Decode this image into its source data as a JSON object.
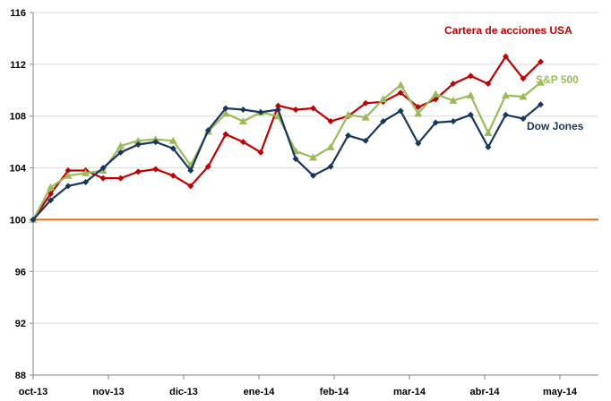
{
  "chart_data": {
    "type": "line",
    "title": "",
    "xlabel": "",
    "ylabel": "",
    "x_tick_labels": [
      "oct-13",
      "nov-13",
      "dic-13",
      "ene-14",
      "feb-14",
      "mar-14",
      "abr-14",
      "may-14"
    ],
    "y_tick_labels": [
      "88",
      "92",
      "96",
      "100",
      "104",
      "108",
      "112",
      "116"
    ],
    "ylim": [
      88,
      116
    ],
    "grid": true,
    "baseline": {
      "value": 100,
      "color": "#E36C09"
    },
    "series": [
      {
        "name": "Cartera de acciones USA",
        "color": "#C00000",
        "marker": "diamond",
        "values": [
          100.0,
          102.0,
          103.8,
          103.8,
          103.2,
          103.2,
          103.7,
          103.9,
          103.4,
          102.6,
          104.1,
          106.6,
          106.0,
          105.2,
          108.8,
          108.5,
          108.6,
          107.6,
          108.0,
          109.0,
          109.1,
          109.8,
          108.7,
          109.3,
          110.5,
          111.1,
          110.5,
          112.6,
          110.9,
          112.2
        ]
      },
      {
        "name": "S&P 500",
        "color": "#9BBB59",
        "marker": "triangle",
        "values": [
          100.0,
          102.5,
          103.4,
          103.6,
          103.8,
          105.7,
          106.1,
          106.2,
          106.1,
          104.2,
          106.8,
          108.2,
          107.6,
          108.3,
          108.0,
          105.3,
          104.8,
          105.6,
          108.1,
          107.9,
          109.3,
          110.4,
          108.2,
          109.7,
          109.2,
          109.6,
          106.7,
          109.6,
          109.5,
          110.6
        ]
      },
      {
        "name": "Dow Jones",
        "color": "#17375E",
        "marker": "diamond",
        "values": [
          100.0,
          101.5,
          102.6,
          102.9,
          104.0,
          105.2,
          105.8,
          106.0,
          105.5,
          103.8,
          106.9,
          108.6,
          108.5,
          108.3,
          108.5,
          104.7,
          103.4,
          104.1,
          106.5,
          106.1,
          107.6,
          108.4,
          105.9,
          107.5,
          107.6,
          108.1,
          105.6,
          108.1,
          107.8,
          108.9
        ]
      }
    ]
  }
}
